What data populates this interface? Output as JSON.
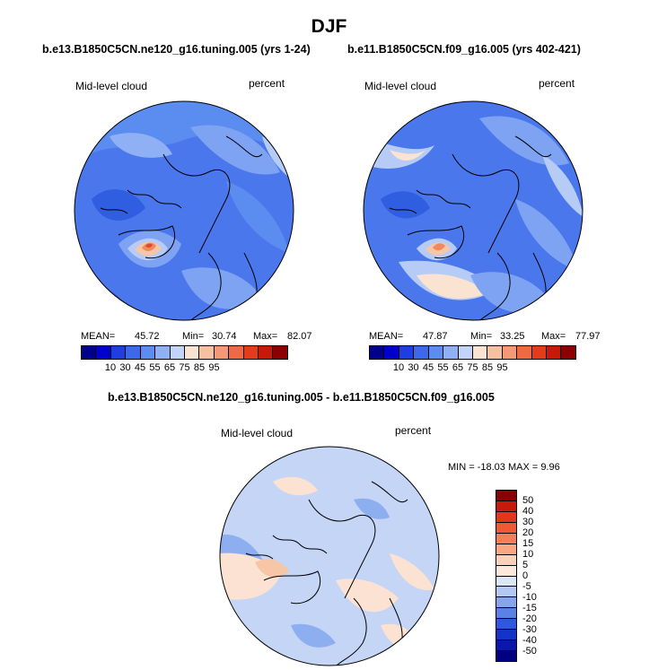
{
  "title": "DJF",
  "panels": [
    {
      "title": "b.e13.B1850C5CN.ne120_g16.tuning.005 (yrs 1-24)",
      "var_label": "Mid-level cloud",
      "unit_label": "percent",
      "mean_label": "MEAN=",
      "mean": "45.72",
      "min_label": "Min=",
      "min": "30.74",
      "max_label": "Max=",
      "max": "82.07"
    },
    {
      "title": "b.e11.B1850C5CN.f09_g16.005 (yrs 402-421)",
      "var_label": "Mid-level cloud",
      "unit_label": "percent",
      "mean_label": "MEAN=",
      "mean": "47.87",
      "min_label": "Min=",
      "min": "33.25",
      "max_label": "Max=",
      "max": "77.97"
    }
  ],
  "diff": {
    "title": "b.e13.B1850C5CN.ne120_g16.tuning.005 - b.e11.B1850C5CN.f09_g16.005",
    "var_label": "Mid-level cloud",
    "unit_label": "percent",
    "minmax_text": "MIN = -18.03 MAX =   9.96"
  },
  "colorbar_main": {
    "colors": [
      "#00008b",
      "#0000cd",
      "#1e3fe0",
      "#3a6ae8",
      "#5b8cf0",
      "#8fb0f5",
      "#c2d4fa",
      "#fbe3d2",
      "#f8c0a0",
      "#f49a72",
      "#ee6a44",
      "#e43a1e",
      "#c81808",
      "#8b0000"
    ],
    "tick_labels": [
      "10",
      "30",
      "45",
      "55",
      "65",
      "75",
      "85",
      "95"
    ]
  },
  "colorbar_diff": {
    "colors": [
      "#8b0000",
      "#c81a0a",
      "#e4361a",
      "#ef5a32",
      "#f4805a",
      "#f8a780",
      "#fbd2b8",
      "#fce8dc",
      "#dbe6f8",
      "#b3c9f2",
      "#86a6ec",
      "#5a82e4",
      "#3058dc",
      "#1434c8",
      "#0818aa",
      "#000080"
    ],
    "tick_labels": [
      "50",
      "40",
      "30",
      "20",
      "15",
      "10",
      "5",
      "0",
      "-5",
      "-10",
      "-15",
      "-20",
      "-30",
      "-40",
      "-50"
    ]
  },
  "map_colors": {
    "deep_blue": "#2f5fe0",
    "mid_blue": "#4a78ec",
    "light_blue": "#7ea3f3",
    "pale_blue": "#b6cbf6",
    "pale_peach": "#fbe3d2",
    "peach": "#f6c6a6",
    "orange": "#ef8a60",
    "red": "#e04a30",
    "diff_base": "#c4d5f6",
    "diff_dark": "#8eafef",
    "diff_warm": "#fbe2d2"
  }
}
